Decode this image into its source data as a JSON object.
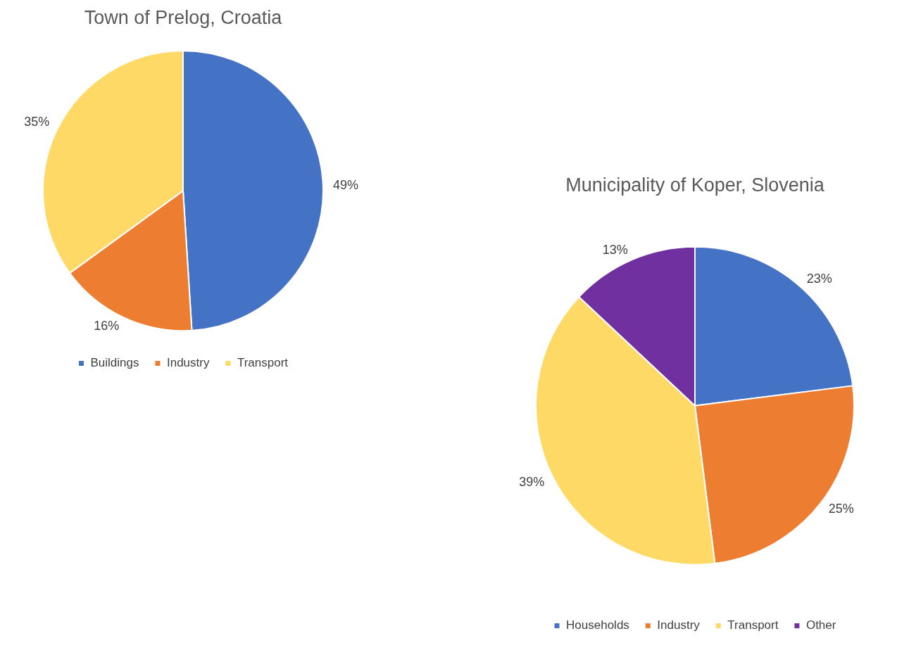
{
  "chart_data": [
    {
      "type": "pie",
      "title": "Town of Prelog, Croatia",
      "categories": [
        "Buildings",
        "Industry",
        "Transport"
      ],
      "values": [
        49,
        16,
        35
      ],
      "colors": [
        "#4472c4",
        "#ed7d31",
        "#ffd966"
      ],
      "value_labels": [
        "49%",
        "16%",
        "35%"
      ],
      "legend": "bottom"
    },
    {
      "type": "pie",
      "title": "Municipality of Koper, Slovenia",
      "categories": [
        "Households",
        "Industry",
        "Transport",
        "Other"
      ],
      "values": [
        23,
        25,
        39,
        13
      ],
      "colors": [
        "#4472c4",
        "#ed7d31",
        "#ffd966",
        "#7030a0"
      ],
      "value_labels": [
        "23%",
        "25%",
        "39%",
        "13%"
      ],
      "legend": "bottom"
    }
  ]
}
